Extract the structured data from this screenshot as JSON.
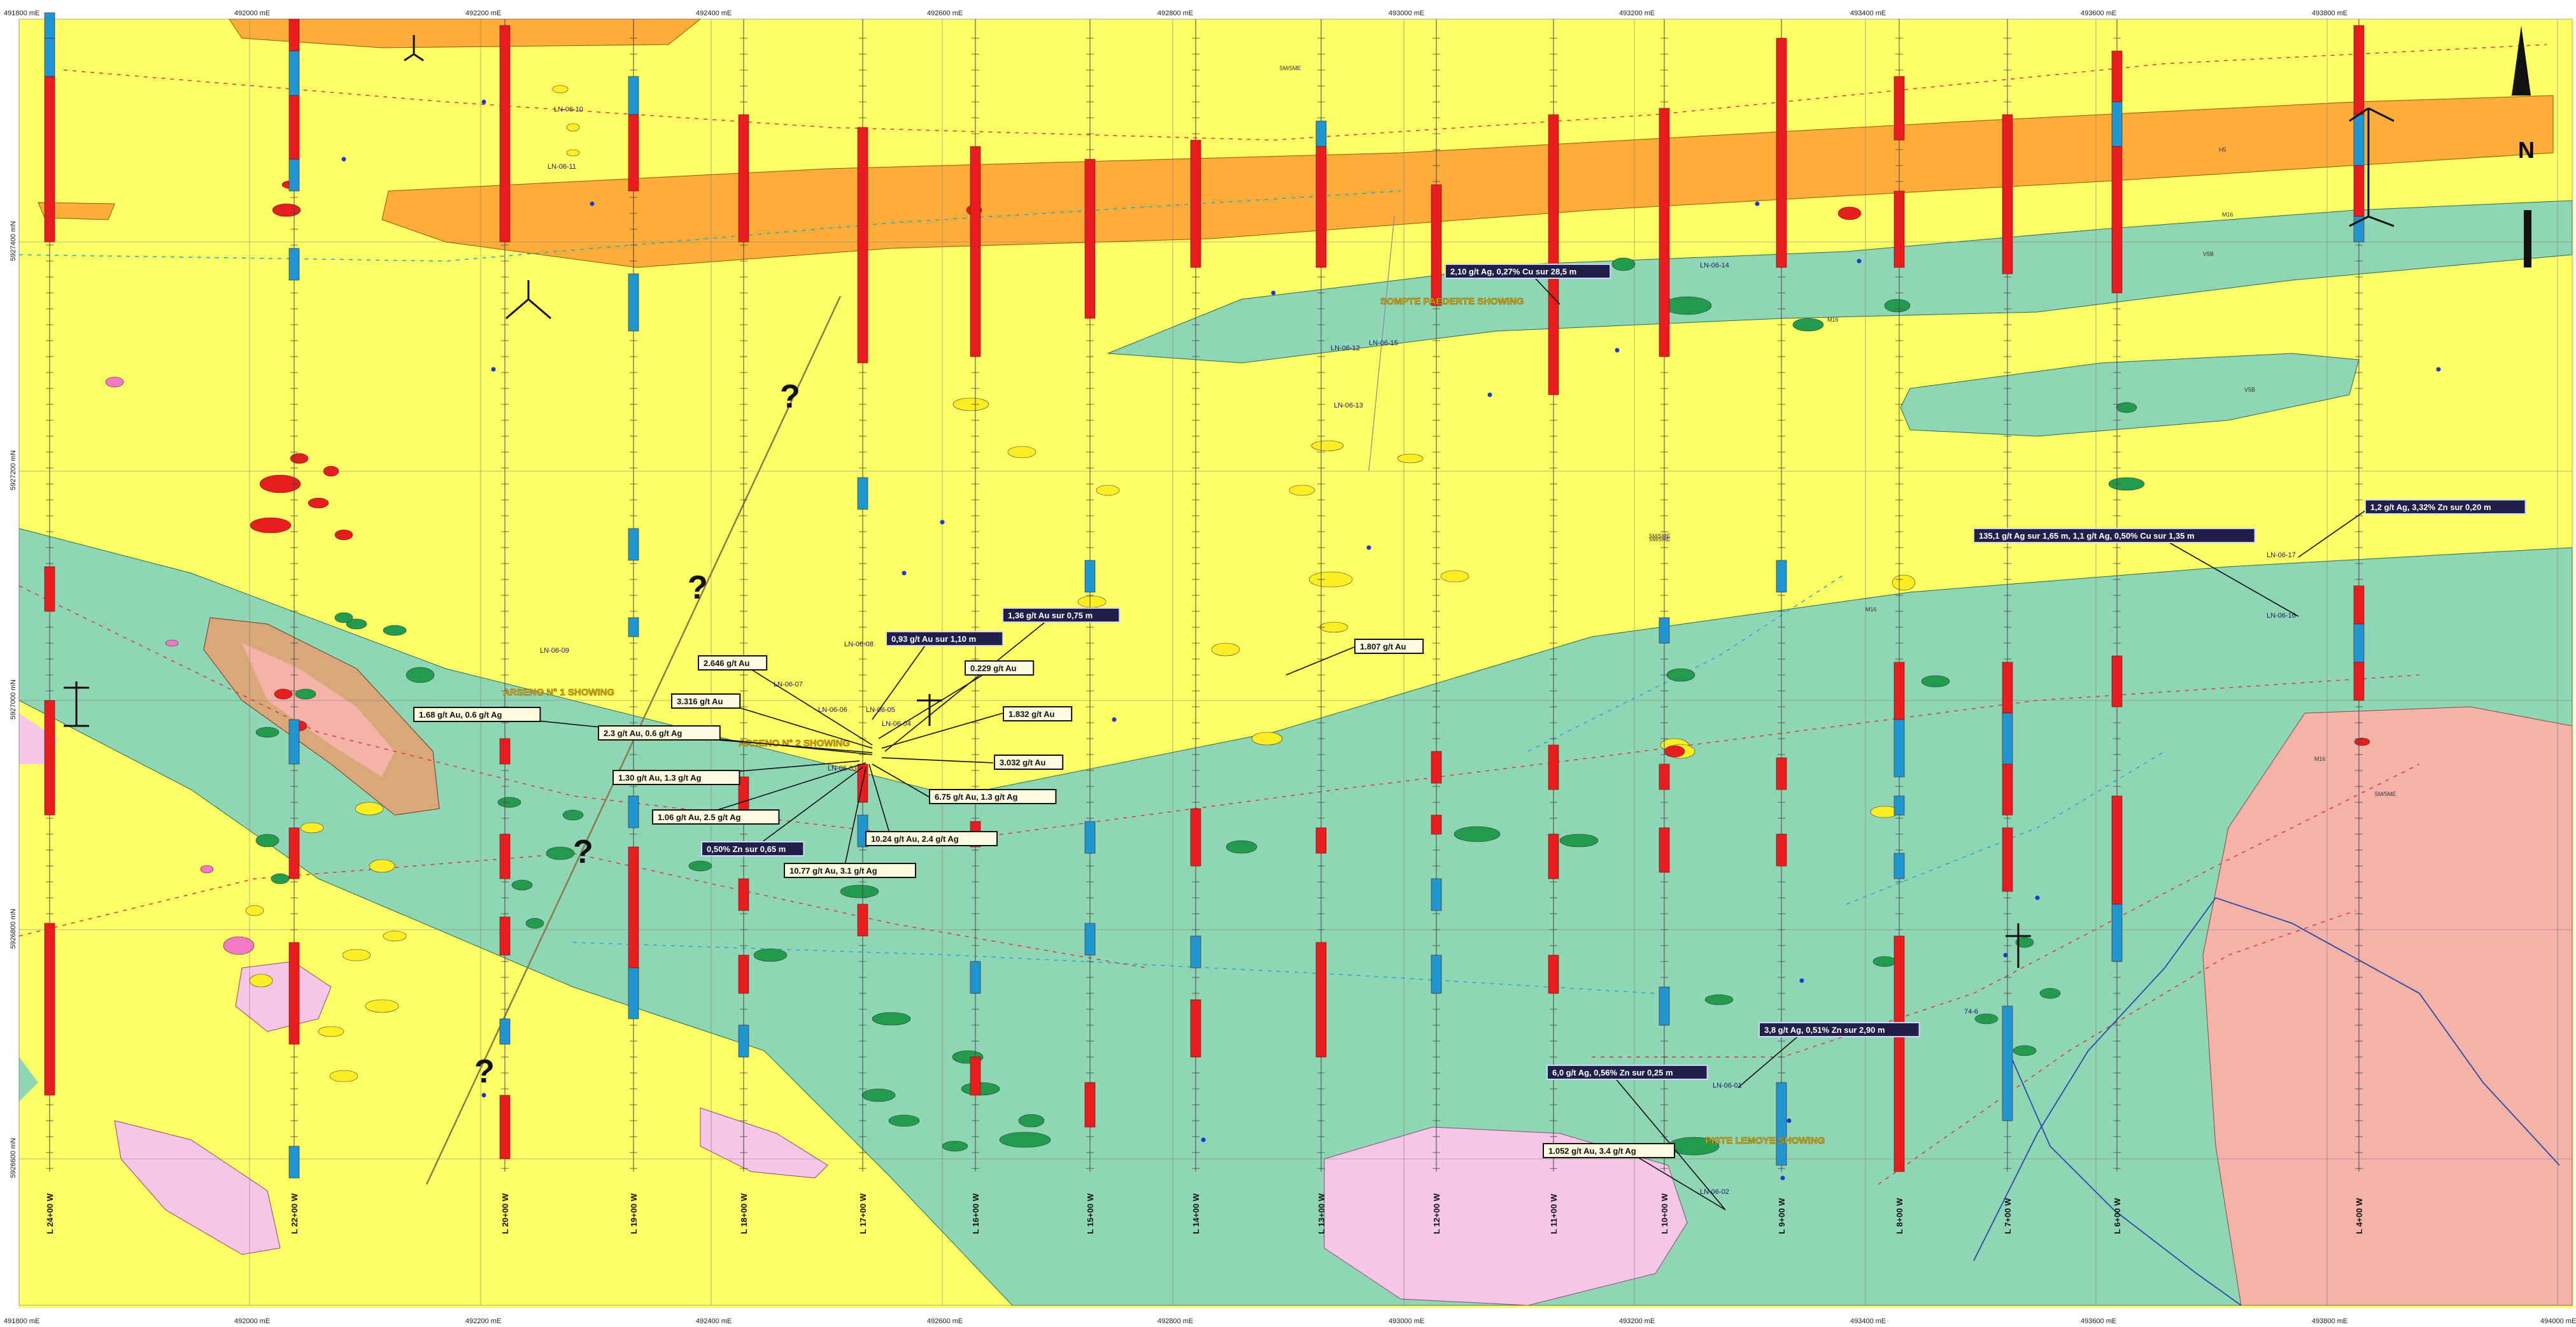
{
  "map": {
    "top_ticks": [
      "491800 mE",
      "492000 mE",
      "492200 mE",
      "492400 mE",
      "492600 mE",
      "492800 mE",
      "493000 mE",
      "493200 mE",
      "493400 mE",
      "493600 mE",
      "493800 mE"
    ],
    "bottom_ticks": [
      "491800 mE",
      "492000 mE",
      "492200 mE",
      "492400 mE",
      "492600 mE",
      "492800 mE",
      "493000 mE",
      "493200 mE",
      "493400 mE",
      "493600 mE",
      "493800 mE",
      "494000 mE"
    ],
    "left_ticks": [
      "5927400 mN",
      "5927200 mN",
      "5927000 mN",
      "5926800 mN",
      "5926600 mN"
    ],
    "north_label": "N",
    "grid_lines": [
      "L 24+00 W",
      "L 22+00 W",
      "L 20+00 W",
      "L 19+00 W",
      "L 18+00 W",
      "L 17+00 W",
      "L 16+00 W",
      "L 15+00 W",
      "L 14+00 W",
      "L 13+00 W",
      "L 12+00 W",
      "L 11+00 W",
      "L 10+00 W",
      "L 9+00 W",
      "L 8+00 W",
      "L 7+00 W",
      "L 6+00 W",
      "L 4+00 W"
    ],
    "showings": [
      "ARSENO N° 1 SHOWING",
      "ARSENO N° 2 SHOWING",
      "SOMPTE PAEDERTE SHOWING",
      "PISTE LEMOYE SHOWING"
    ],
    "drillholes": [
      "LN-06-10",
      "LN-06-11",
      "LN-06-09",
      "LN-06-08",
      "LN-06-07",
      "LN-06-06",
      "LN-06-05",
      "LN-06-04",
      "LN-06-03",
      "LN-06-14",
      "LN-06-13",
      "LN-06-12",
      "LN-06-15",
      "LN-06-17",
      "LN-06-16",
      "LN-06-01",
      "LN-06-02"
    ],
    "unit_labels": [
      "5M/5ME",
      "5M/5ME",
      "5M/5ME",
      "V5B",
      "V5B",
      "5M/5ME",
      "M16",
      "M16",
      "M16",
      "M16",
      "H5"
    ],
    "callouts": [
      {
        "text": "2,10 g/t Ag, 0,27% Cu sur 28,5 m",
        "style": "dark"
      },
      {
        "text": "1,2 g/t Ag, 3,32% Zn sur 0,20 m",
        "style": "dark"
      },
      {
        "text": "135,1 g/t Ag sur 1,65 m, 1,1 g/t Ag, 0,50% Cu sur 1,35 m",
        "style": "dark"
      },
      {
        "text": "1,36 g/t Au sur 0,75 m",
        "style": "dark"
      },
      {
        "text": "0,93 g/t Au sur 1,10 m",
        "style": "dark"
      },
      {
        "text": "2.646 g/t Au",
        "style": "light"
      },
      {
        "text": "0.229 g/t Au",
        "style": "light"
      },
      {
        "text": "1.807 g/t Au",
        "style": "light"
      },
      {
        "text": "3.316 g/t Au",
        "style": "light"
      },
      {
        "text": "1.832 g/t Au",
        "style": "light"
      },
      {
        "text": "1.68 g/t Au,  0.6 g/t Ag",
        "style": "light"
      },
      {
        "text": "2.3 g/t Au,  0.6 g/t Ag",
        "style": "light"
      },
      {
        "text": "3.032 g/t Au",
        "style": "light"
      },
      {
        "text": "1.30 g/t Au,  1.3 g/t Ag",
        "style": "light"
      },
      {
        "text": "6.75 g/t Au,  1.3 g/t Ag",
        "style": "light"
      },
      {
        "text": "1.06 g/t Au,  2.5 g/t Ag",
        "style": "light"
      },
      {
        "text": "10.24 g/t Au,  2.4 g/t Ag",
        "style": "light"
      },
      {
        "text": "0,50% Zn sur 0,65 m",
        "style": "dark"
      },
      {
        "text": "10.77 g/t Au,  3.1 g/t Ag",
        "style": "light"
      },
      {
        "text": "3,8 g/t Ag, 0,51% Zn sur 2,90 m",
        "style": "dark"
      },
      {
        "text": "6,0 g/t Ag, 0,56% Zn sur 0,25 m",
        "style": "dark"
      },
      {
        "text": "1.052 g/t Au,  3.4 g/t Ag",
        "style": "light"
      }
    ],
    "other_labels": [
      "74-6"
    ],
    "colors": {
      "background_yellow": "#ffff66",
      "orange_unit": "#ffad3a",
      "teal_unit": "#8fd6b6",
      "salmon_unit": "#f4b2a8",
      "pink_unit": "#f6c6e6",
      "tan_unit": "#d9a87a",
      "dark_green": "#239b4e",
      "red_seg": "#e81e1e",
      "blue_seg": "#1e96d2",
      "callout_dark": "#20204a",
      "callout_light": "#fffbe0",
      "showing_gold": "#e0b000"
    }
  }
}
